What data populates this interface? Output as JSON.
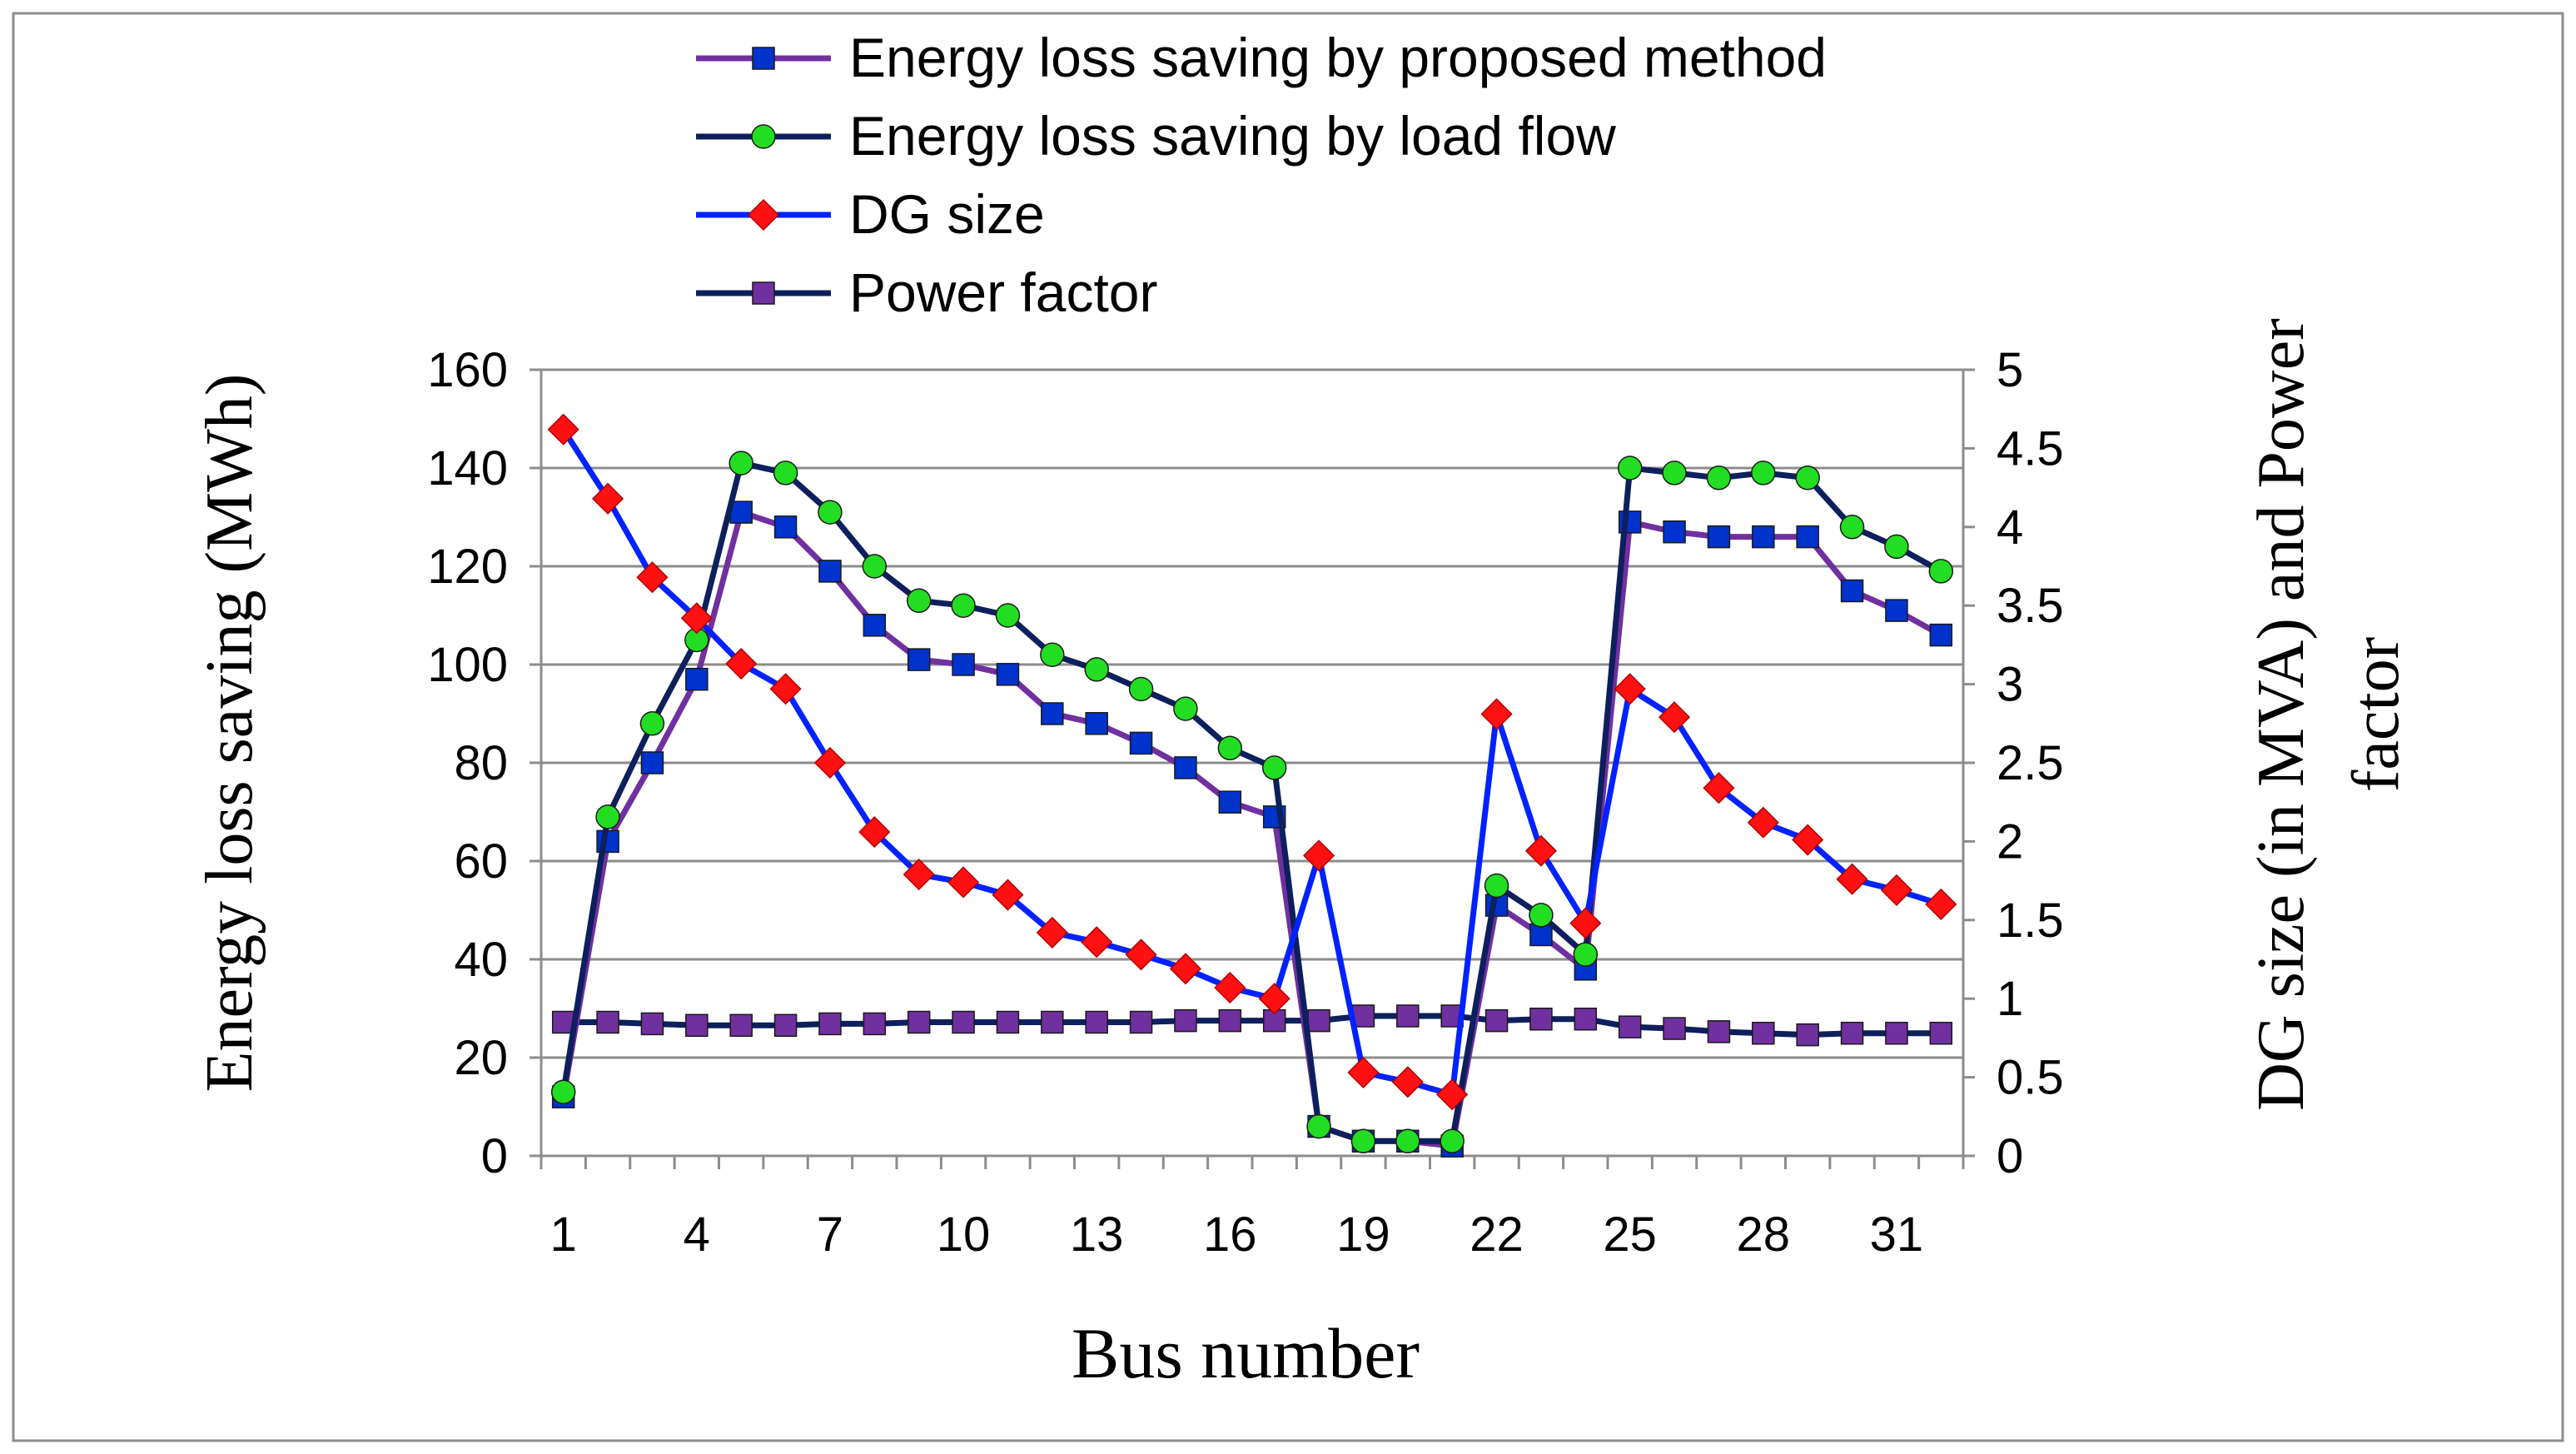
{
  "chart_data": {
    "type": "line",
    "title": "",
    "xlabel": "Bus number",
    "ylabel": "Energy loss saving (MWh)",
    "y2label": "DG size (in MVA) and Power factor",
    "categories": [
      1,
      2,
      3,
      4,
      5,
      6,
      7,
      8,
      9,
      10,
      11,
      12,
      13,
      14,
      15,
      16,
      17,
      18,
      19,
      20,
      21,
      22,
      23,
      24,
      25,
      26,
      27,
      28,
      29,
      30,
      31,
      32
    ],
    "x_tick_labels": [
      "1",
      "4",
      "7",
      "10",
      "13",
      "16",
      "19",
      "22",
      "25",
      "28",
      "31"
    ],
    "ylim": [
      0,
      160
    ],
    "y_ticks": [
      "0",
      "20",
      "40",
      "60",
      "80",
      "100",
      "120",
      "140",
      "160"
    ],
    "y2lim": [
      0,
      5
    ],
    "y2_ticks": [
      "0",
      "0.5",
      "1",
      "1.5",
      "2",
      "2.5",
      "3",
      "3.5",
      "4",
      "4.5",
      "5"
    ],
    "grid": true,
    "legend_position": "top",
    "series": [
      {
        "name": "Energy loss saving by proposed method",
        "axis": "left",
        "line_color": "#7030A0",
        "marker": "square",
        "marker_color": "#0033CC",
        "values": [
          12,
          64,
          80,
          97,
          131,
          128,
          119,
          108,
          101,
          100,
          98,
          90,
          88,
          84,
          79,
          72,
          69,
          6,
          3,
          3,
          2,
          51,
          45,
          38,
          129,
          127,
          126,
          126,
          126,
          115,
          111,
          106
        ]
      },
      {
        "name": "Energy loss saving by load flow",
        "axis": "left",
        "line_color": "#0D1F5C",
        "marker": "circle",
        "marker_color": "#22DD22",
        "values": [
          13,
          69,
          88,
          105,
          141,
          139,
          131,
          120,
          113,
          112,
          110,
          102,
          99,
          95,
          91,
          83,
          79,
          6,
          3,
          3,
          3,
          55,
          49,
          41,
          140,
          139,
          138,
          139,
          138,
          128,
          124,
          119
        ]
      },
      {
        "name": "DG size",
        "axis": "right",
        "line_color": "#0022FF",
        "marker": "diamond",
        "marker_color": "#FF1111",
        "values": [
          4.62,
          4.18,
          3.68,
          3.42,
          3.13,
          2.97,
          2.5,
          2.06,
          1.79,
          1.74,
          1.66,
          1.42,
          1.36,
          1.28,
          1.19,
          1.07,
          1.0,
          1.91,
          0.53,
          0.47,
          0.39,
          2.81,
          1.94,
          1.48,
          2.97,
          2.79,
          2.34,
          2.12,
          2.01,
          1.76,
          1.69,
          1.6
        ]
      },
      {
        "name": "Power factor",
        "axis": "right",
        "line_color": "#0D1F5C",
        "marker": "square",
        "marker_color": "#7030A0",
        "values": [
          0.85,
          0.85,
          0.84,
          0.83,
          0.83,
          0.83,
          0.84,
          0.84,
          0.85,
          0.85,
          0.85,
          0.85,
          0.85,
          0.85,
          0.86,
          0.86,
          0.86,
          0.86,
          0.89,
          0.89,
          0.89,
          0.86,
          0.87,
          0.87,
          0.82,
          0.81,
          0.79,
          0.78,
          0.77,
          0.78,
          0.78,
          0.78
        ]
      }
    ]
  }
}
